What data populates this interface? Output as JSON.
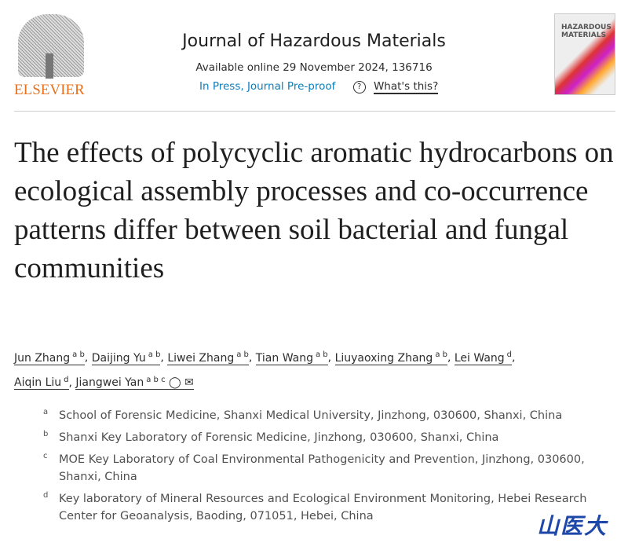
{
  "header": {
    "publisher": "ELSEVIER",
    "journal": "Journal of Hazardous Materials",
    "available": "Available online 29 November 2024, 136716",
    "status": "In Press, Journal Pre-proof",
    "help_label": "What's this?",
    "cover_text": "HAZARDOUS MATERIALS"
  },
  "article": {
    "title": "The effects of polycyclic aromatic hydrocarbons on ecological assembly processes and co-occurrence patterns differ between soil bacterial and fungal communities"
  },
  "authors": [
    {
      "name": "Jun Zhang",
      "sup": "a b"
    },
    {
      "name": "Daijing Yu",
      "sup": "a b"
    },
    {
      "name": "Liwei Zhang",
      "sup": "a b"
    },
    {
      "name": "Tian Wang",
      "sup": "a b"
    },
    {
      "name": "Liuyaoxing Zhang",
      "sup": "a b"
    },
    {
      "name": "Lei Wang",
      "sup": "d"
    },
    {
      "name": "Aiqin Liu",
      "sup": "d"
    },
    {
      "name": "Jiangwei Yan",
      "sup": "a b c"
    }
  ],
  "affiliations": [
    {
      "label": "a",
      "text": "School of Forensic Medicine, Shanxi Medical University, Jinzhong, 030600, Shanxi, China"
    },
    {
      "label": "b",
      "text": "Shanxi Key Laboratory of Forensic Medicine, Jinzhong, 030600, Shanxi, China"
    },
    {
      "label": "c",
      "text": "MOE Key Laboratory of Coal Environmental Pathogenicity and Prevention, Jinzhong, 030600, Shanxi, China"
    },
    {
      "label": "d",
      "text": "Key laboratory of Mineral Resources and Ecological Environment Monitoring, Hebei Research Center for Geoanalysis, Baoding, 071051, Hebei, China"
    }
  ],
  "watermark": "山医大"
}
